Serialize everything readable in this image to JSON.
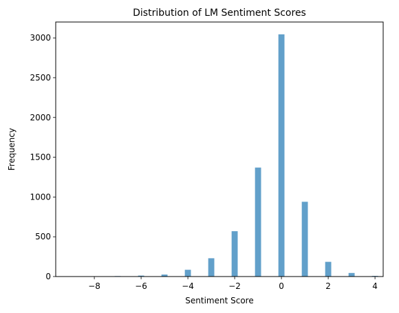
{
  "chart_data": {
    "type": "bar",
    "title": "Distribution of LM Sentiment Scores",
    "xlabel": "Sentiment Score",
    "ylabel": "Frequency",
    "x": [
      -9,
      -8,
      -7,
      -6,
      -5,
      -4,
      -3,
      -2,
      -1,
      0,
      1,
      2,
      3,
      4
    ],
    "values": [
      4,
      1,
      6,
      12,
      25,
      85,
      230,
      570,
      1370,
      3045,
      940,
      185,
      45,
      8
    ],
    "xlim": [
      -9.65,
      4.35
    ],
    "ylim": [
      0,
      3200
    ],
    "xticks": [
      -8,
      -6,
      -4,
      -2,
      0,
      2,
      4
    ],
    "xtick_labels": [
      "−8",
      "−6",
      "−4",
      "−2",
      "0",
      "2",
      "4"
    ],
    "yticks": [
      0,
      500,
      1000,
      1500,
      2000,
      2500,
      3000
    ],
    "ytick_labels": [
      "0",
      "500",
      "1000",
      "1500",
      "2000",
      "2500",
      "3000"
    ],
    "bar_color": "#1f77b4",
    "bar_opacity": 0.7,
    "grid": false,
    "legend": "none"
  }
}
